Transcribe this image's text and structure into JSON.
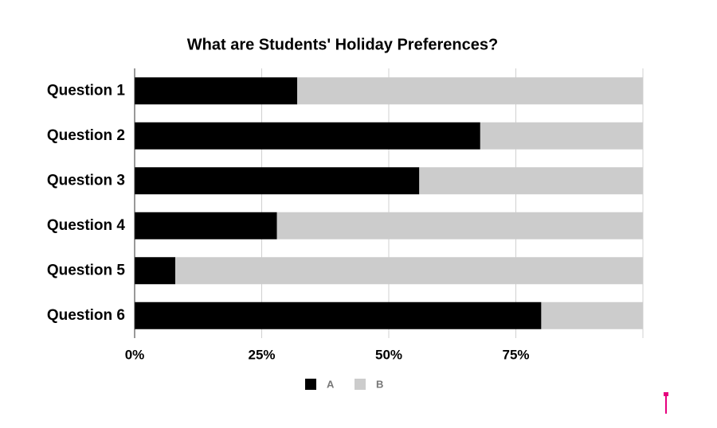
{
  "chart_data": {
    "type": "stacked-bar-horizontal",
    "title": "What are Students' Holiday Preferences?",
    "categories": [
      "Question 1",
      "Question 2",
      "Question 3",
      "Question 4",
      "Question 5",
      "Question 6"
    ],
    "series": [
      {
        "name": "A",
        "color": "#000000",
        "values": [
          32,
          68,
          56,
          28,
          8,
          80
        ]
      },
      {
        "name": "B",
        "color": "#cccccc",
        "values": [
          68,
          32,
          44,
          72,
          92,
          20
        ]
      }
    ],
    "xlim": [
      0,
      100
    ],
    "xticks": [
      {
        "value": 0,
        "label": "0%"
      },
      {
        "value": 25,
        "label": "25%"
      },
      {
        "value": 50,
        "label": "50%"
      },
      {
        "value": 75,
        "label": "75%"
      }
    ],
    "grid": true
  }
}
